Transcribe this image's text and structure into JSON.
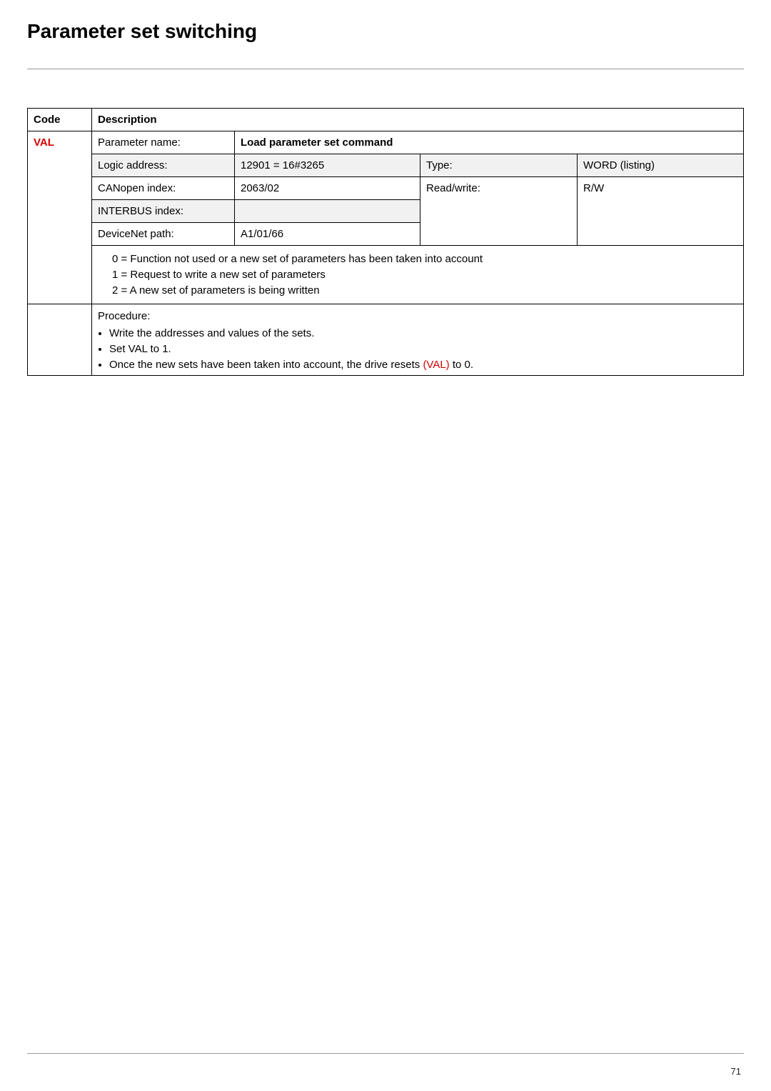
{
  "colors": {
    "code_red": "#d40000",
    "header_gray": "#f1f1f1",
    "rule_gray": "#999999",
    "text": "#000000"
  },
  "page": {
    "title": "Parameter set switching",
    "number": "71"
  },
  "table": {
    "headers": {
      "code": "Code",
      "description": "Description"
    },
    "code": "VAL",
    "param_name_label": "Parameter name:",
    "param_name_value": "Load parameter set command",
    "rows": {
      "logic_label": "Logic address:",
      "logic_value": "12901 = 16#3265",
      "type_label": "Type:",
      "type_value": "WORD (listing)",
      "can_label": "CANopen index:",
      "can_value": "2063/02",
      "rw_label": "Read/write:",
      "rw_value": "R/W",
      "interbus_label": "INTERBUS index:",
      "interbus_value": "",
      "devnet_label": "DeviceNet path:",
      "devnet_value": "A1/01/66"
    },
    "enum": {
      "l0": "0 = Function not used or a new set of parameters has been taken into account",
      "l1": "1 = Request to write a new set of parameters",
      "l2": "2 = A new set of parameters is being written"
    },
    "procedure": {
      "heading": "Procedure:",
      "b1": "Write the addresses and values of the sets.",
      "b2": "Set VAL to 1.",
      "b3_pre": "Once the new sets have been taken into account, the drive resets ",
      "b3_code": "(VAL)",
      "b3_post": " to 0."
    }
  }
}
